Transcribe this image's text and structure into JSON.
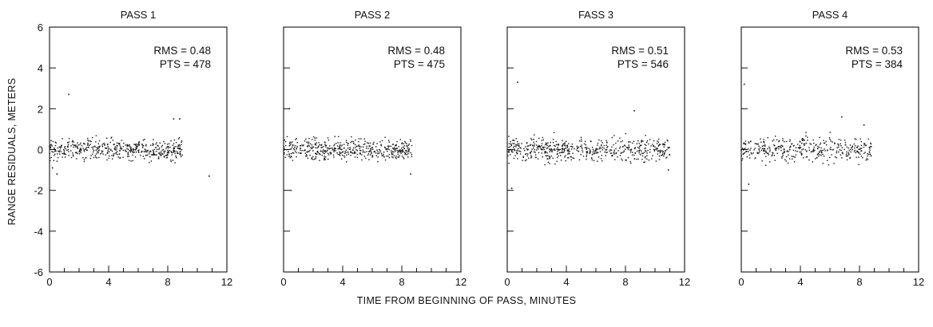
{
  "figure": {
    "ylabel": "RANGE RESIDUALS, METERS",
    "xlabel": "TIME FROM BEGINNING OF PASS, MINUTES"
  },
  "colors": {
    "ink": "#111111",
    "background": "#ffffff"
  },
  "chart_data": [
    {
      "type": "scatter",
      "title": "PASS 1",
      "xlim": [
        0,
        12
      ],
      "ylim": [
        -6,
        6
      ],
      "xticks": [
        "0",
        "4",
        "8",
        "12"
      ],
      "yticks": [
        "6",
        "4",
        "2",
        "0",
        "-2",
        "-4",
        "-6"
      ],
      "rms_label": "RMS = 0.48",
      "pts_label": "PTS = 478",
      "x_range": [
        0,
        9
      ],
      "spread": 0.36,
      "n_points": 478,
      "outliers": [
        [
          1.3,
          2.7
        ],
        [
          10.8,
          -1.3
        ],
        [
          8.4,
          1.5
        ],
        [
          8.8,
          1.5
        ],
        [
          0.2,
          -0.9
        ],
        [
          0.5,
          -1.2
        ]
      ]
    },
    {
      "type": "scatter",
      "title": "PASS 2",
      "xlim": [
        0,
        12
      ],
      "ylim": [
        -6,
        6
      ],
      "xticks": [
        "0",
        "4",
        "8",
        "12"
      ],
      "yticks": [],
      "rms_label": "RMS = 0.48",
      "pts_label": "PTS = 475",
      "x_range": [
        0,
        8.7
      ],
      "spread": 0.36,
      "n_points": 475,
      "outliers": [
        [
          0.4,
          2.0
        ],
        [
          0.5,
          -2.0
        ],
        [
          8.6,
          -1.2
        ]
      ]
    },
    {
      "type": "scatter",
      "title": "FASS 3",
      "xlim": [
        0,
        12
      ],
      "ylim": [
        -6,
        6
      ],
      "xticks": [
        "0",
        "4",
        "8",
        "12"
      ],
      "yticks": [],
      "rms_label": "RMS = 0.51",
      "pts_label": "PTS = 546",
      "x_range": [
        0,
        11
      ],
      "spread": 0.4,
      "n_points": 546,
      "outliers": [
        [
          0.7,
          3.3
        ],
        [
          8.6,
          1.9
        ],
        [
          0.3,
          -1.9
        ],
        [
          10.9,
          -1.0
        ]
      ]
    },
    {
      "type": "scatter",
      "title": "PASS 4",
      "xlim": [
        0,
        12
      ],
      "ylim": [
        -6,
        6
      ],
      "xticks": [
        "0",
        "4",
        "8",
        "12"
      ],
      "yticks": [],
      "rms_label": "RMS = 0.53",
      "pts_label": "PTS = 384",
      "x_range": [
        0,
        8.8
      ],
      "spread": 0.42,
      "n_points": 384,
      "outliers": [
        [
          0.2,
          3.2
        ],
        [
          6.8,
          1.6
        ],
        [
          8.3,
          1.2
        ],
        [
          0.5,
          -1.7
        ]
      ]
    }
  ]
}
